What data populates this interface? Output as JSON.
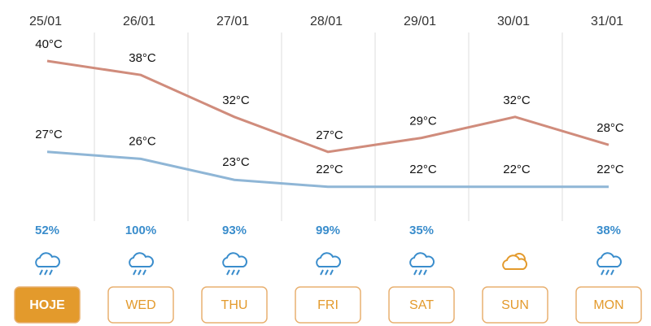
{
  "days": [
    {
      "date": "25/01",
      "high": 40,
      "high_label": "40°C",
      "low": 27,
      "low_label": "27°C",
      "rain": "52%",
      "icon": "rain",
      "button": "HOJE",
      "active": true
    },
    {
      "date": "26/01",
      "high": 38,
      "high_label": "38°C",
      "low": 26,
      "low_label": "26°C",
      "rain": "100%",
      "icon": "rain",
      "button": "WED"
    },
    {
      "date": "27/01",
      "high": 32,
      "high_label": "32°C",
      "low": 23,
      "low_label": "23°C",
      "rain": "93%",
      "icon": "rain",
      "button": "THU"
    },
    {
      "date": "28/01",
      "high": 27,
      "high_label": "27°C",
      "low": 22,
      "low_label": "22°C",
      "rain": "99%",
      "icon": "rain",
      "button": "FRI"
    },
    {
      "date": "29/01",
      "high": 29,
      "high_label": "29°C",
      "low": 22,
      "low_label": "22°C",
      "rain": "35%",
      "icon": "rain",
      "button": "SAT"
    },
    {
      "date": "30/01",
      "high": 32,
      "high_label": "32°C",
      "low": 22,
      "low_label": "22°C",
      "icon": "partly-cloudy",
      "button": "SUN"
    },
    {
      "date": "31/01",
      "high": 28,
      "high_label": "28°C",
      "low": 22,
      "low_label": "22°C",
      "rain": "38%",
      "icon": "rain",
      "button": "MON"
    }
  ],
  "high_color": "#d08c7c",
  "low_color": "#8fb6d6"
}
